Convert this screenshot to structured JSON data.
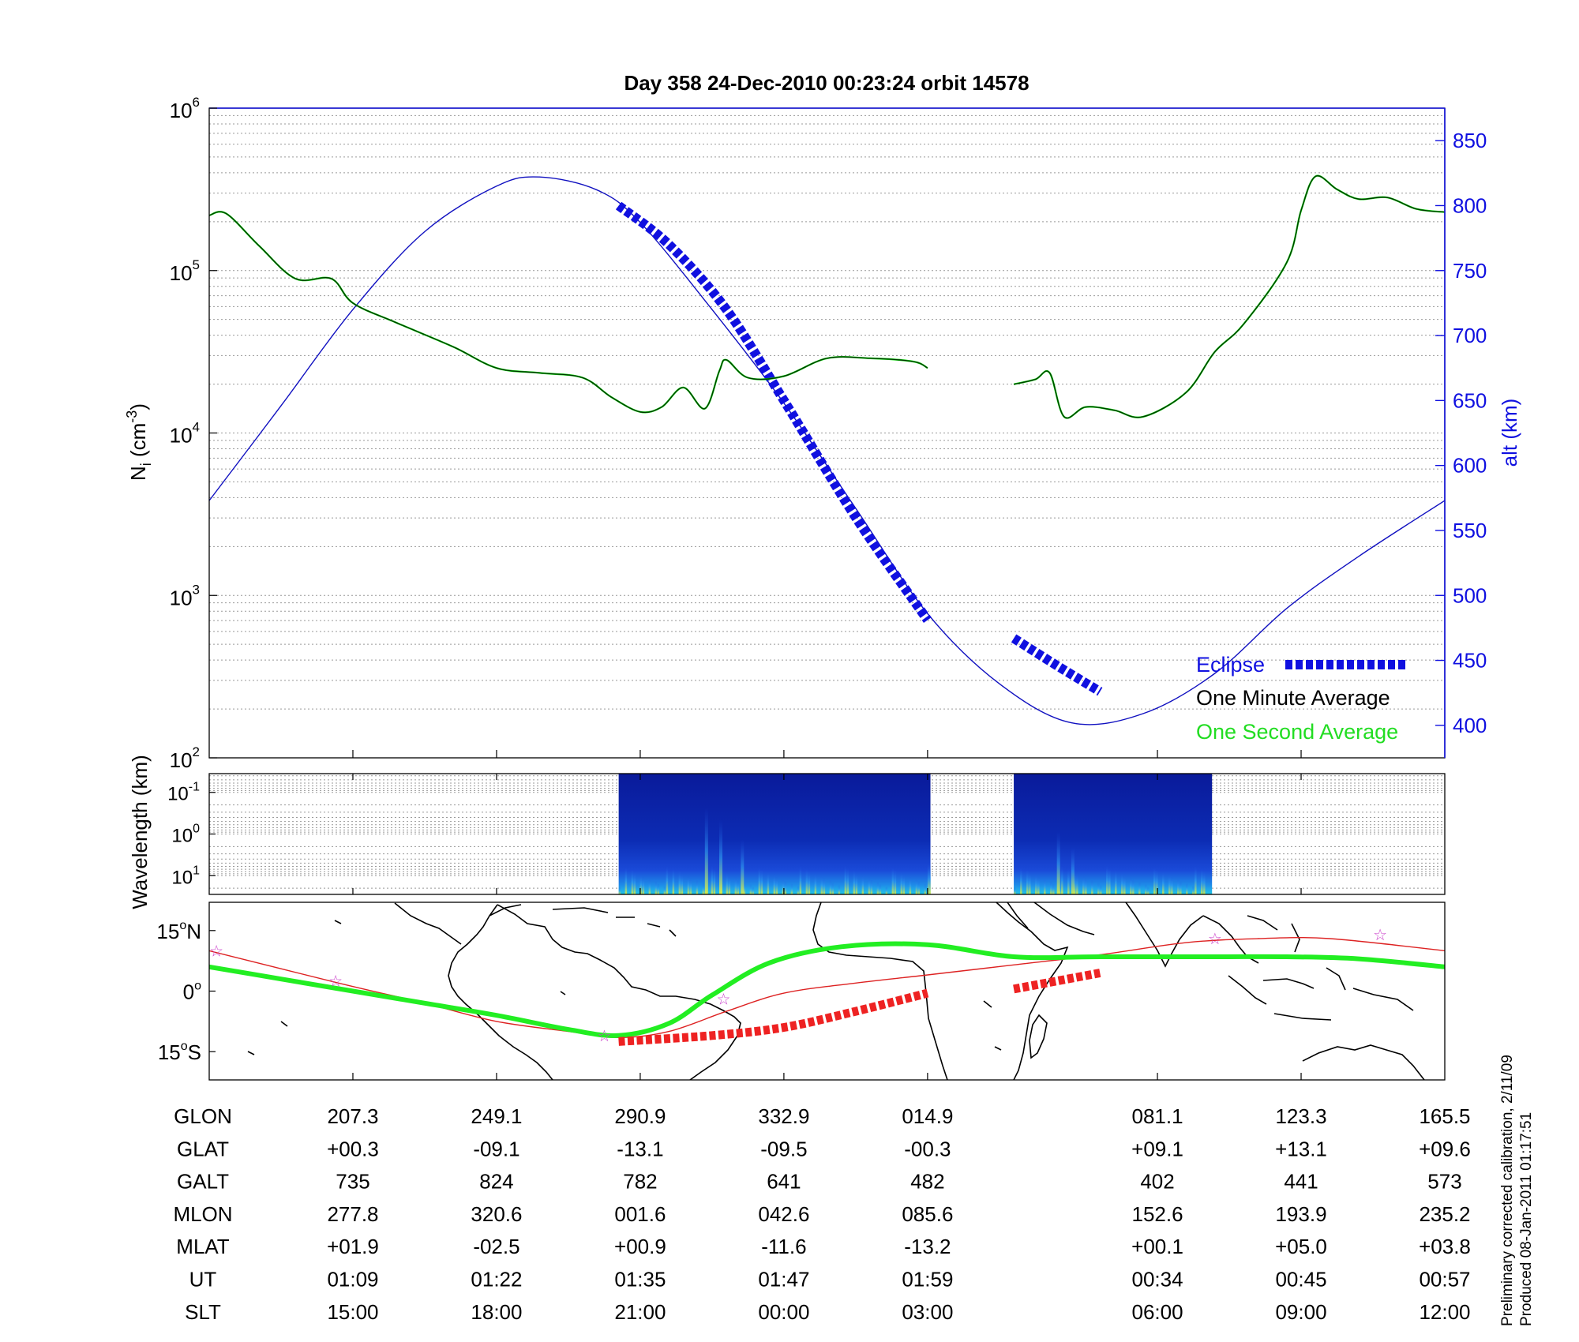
{
  "title": "Day 358  24-Dec-2010 00:23:24   orbit 14578",
  "colors": {
    "blue": "#1010e0",
    "eclipse": "#1010e0",
    "minute_avg": "#003300",
    "second_avg": "#00dd00",
    "track_green": "#22ee22",
    "track_red": "#ee2222",
    "star": "#cc44cc",
    "grid": "#999999"
  },
  "chart_data": [
    {
      "type": "line",
      "panel": "ion-density",
      "ylabel_left": "N",
      "ylabel_left_sub": "i",
      "ylabel_left_unit": " (cm",
      "ylabel_left_exp": "-3",
      "ylabel_left_close": ")",
      "ylim_log": [
        2,
        6
      ],
      "left_ticks": [
        {
          "base": "10",
          "exp": "2",
          "v": 2
        },
        {
          "base": "10",
          "exp": "3",
          "v": 3
        },
        {
          "base": "10",
          "exp": "4",
          "v": 4
        },
        {
          "base": "10",
          "exp": "5",
          "v": 5
        },
        {
          "base": "10",
          "exp": "6",
          "v": 6
        }
      ],
      "ylabel_right": "alt (km)",
      "ylim_right": [
        375,
        875
      ],
      "right_ticks": [
        "400",
        "450",
        "500",
        "550",
        "600",
        "650",
        "700",
        "750",
        "800",
        "850"
      ],
      "x_range": [
        0,
        8.6
      ],
      "grid": true,
      "legend": {
        "position": "bottom-right",
        "eclipse": "Eclipse",
        "minute": "One Minute Average",
        "second": "One Second Average"
      },
      "altitude": {
        "x": [
          0.0,
          0.5,
          1.0,
          1.5,
          2.0,
          2.3,
          2.7,
          3.0,
          3.5,
          4.0,
          4.5,
          5.0,
          5.5,
          6.0,
          6.5,
          7.0,
          7.5,
          8.0,
          8.6
        ],
        "alt": [
          573,
          646,
          720,
          780,
          815,
          822,
          812,
          787,
          720,
          648,
          567,
          486,
          432,
          402,
          409,
          440,
          490,
          530,
          573
        ]
      },
      "eclipse_segments": [
        {
          "x": [
            2.85,
            3.2,
            3.6,
            4.0,
            4.5,
            5.0
          ],
          "alt": [
            800,
            770,
            720,
            650,
            560,
            481
          ]
        },
        {
          "x": [
            5.6,
            5.9,
            6.2
          ],
          "alt": [
            467,
            446,
            426
          ]
        }
      ],
      "density_segments": [
        {
          "x": [
            0.0,
            0.12,
            0.35,
            0.6,
            0.85,
            1.0,
            1.3,
            1.7,
            2.0,
            2.3,
            2.6,
            2.8,
            3.0,
            3.15,
            3.3,
            3.45,
            3.55,
            3.6,
            3.75,
            4.0,
            4.3,
            4.6,
            4.9,
            5.0
          ],
          "logN": [
            5.34,
            5.35,
            5.15,
            4.95,
            4.95,
            4.8,
            4.68,
            4.53,
            4.4,
            4.37,
            4.34,
            4.22,
            4.13,
            4.16,
            4.28,
            4.15,
            4.38,
            4.45,
            4.34,
            4.35,
            4.46,
            4.46,
            4.44,
            4.4
          ]
        },
        {
          "x": [
            5.6,
            5.75,
            5.85,
            5.95,
            6.1,
            6.3,
            6.5,
            6.8,
            7.0,
            7.2,
            7.5,
            7.6,
            7.7,
            7.85,
            8.0,
            8.2,
            8.4,
            8.6
          ],
          "logN": [
            4.3,
            4.33,
            4.37,
            4.1,
            4.16,
            4.14,
            4.1,
            4.25,
            4.5,
            4.67,
            5.05,
            5.37,
            5.58,
            5.5,
            5.44,
            5.45,
            5.38,
            5.36
          ]
        }
      ]
    },
    {
      "type": "heatmap",
      "panel": "wavelength-spectrogram",
      "ylabel": "Wavelength (km)",
      "y_ticks": [
        {
          "base": "10",
          "exp": "-1",
          "v": -1
        },
        {
          "base": "10",
          "exp": "0",
          "v": 0
        },
        {
          "base": "10",
          "exp": "1",
          "v": 1
        }
      ],
      "ylim_log": [
        -1.45,
        1.45
      ],
      "blocks_x": [
        [
          2.85,
          5.02
        ],
        [
          5.6,
          6.98
        ]
      ]
    },
    {
      "type": "line",
      "panel": "ground-track",
      "ylim": [
        -22,
        22
      ],
      "y_ticks": [
        {
          "v": 15,
          "text": "15",
          "suffix": "N"
        },
        {
          "v": 0,
          "text": "0",
          "suffix": ""
        },
        {
          "v": -15,
          "text": "15",
          "suffix": "S"
        }
      ],
      "satellite_track": {
        "x": [
          0.0,
          0.5,
          1.0,
          1.5,
          2.0,
          2.5,
          2.85,
          3.2,
          3.5,
          3.9,
          4.4,
          5.0,
          5.6,
          6.2,
          7.0,
          7.5,
          8.0,
          8.6
        ],
        "lat": [
          6,
          3,
          0,
          -3,
          -6,
          -9.5,
          -11,
          -8,
          -1,
          7,
          11,
          11.5,
          8.5,
          8.5,
          8.5,
          8.5,
          8,
          6
        ]
      },
      "magnetic_equator": {
        "x": [
          0.0,
          0.9,
          1.5,
          2.0,
          2.5,
          2.85,
          3.2,
          3.6,
          4.0,
          4.5,
          5.0,
          5.6,
          6.2,
          6.8,
          7.3,
          7.8,
          8.6
        ],
        "lat": [
          10,
          2,
          -3,
          -7.5,
          -10,
          -11.5,
          -10,
          -5,
          -0.5,
          2,
          4,
          6.5,
          9,
          12,
          13,
          13,
          10
        ]
      },
      "eclipse_track": [
        {
          "x": [
            2.85,
            3.5,
            4.0,
            4.5,
            5.0
          ],
          "lat": [
            -12.5,
            -11,
            -9,
            -5,
            -0.5
          ]
        },
        {
          "x": [
            5.6,
            6.2
          ],
          "lat": [
            0.5,
            4.5
          ]
        }
      ],
      "stars": [
        {
          "x": 0.05,
          "lat": 10
        },
        {
          "x": 0.88,
          "lat": 2.5
        },
        {
          "x": 2.75,
          "lat": -11
        },
        {
          "x": 3.58,
          "lat": -2
        },
        {
          "x": 7.0,
          "lat": 13
        },
        {
          "x": 8.15,
          "lat": 14
        }
      ]
    }
  ],
  "table": {
    "row_labels": [
      "GLON",
      "GLAT",
      "GALT",
      "MLON",
      "MLAT",
      "UT",
      "SLT"
    ],
    "columns": [
      {
        "x": 1.0,
        "values": [
          "207.3",
          "+00.3",
          "735",
          "277.8",
          "+01.9",
          "01:09",
          "15:00"
        ]
      },
      {
        "x": 2.0,
        "values": [
          "249.1",
          "-09.1",
          "824",
          "320.6",
          "-02.5",
          "01:22",
          "18:00"
        ]
      },
      {
        "x": 3.0,
        "values": [
          "290.9",
          "-13.1",
          "782",
          "001.6",
          "+00.9",
          "01:35",
          "21:00"
        ]
      },
      {
        "x": 4.0,
        "values": [
          "332.9",
          "-09.5",
          "641",
          "042.6",
          "-11.6",
          "01:47",
          "00:00"
        ]
      },
      {
        "x": 5.0,
        "values": [
          "014.9",
          "-00.3",
          "482",
          "085.6",
          "-13.2",
          "01:59",
          "03:00"
        ]
      },
      {
        "x": 6.6,
        "values": [
          "081.1",
          "+09.1",
          "402",
          "152.6",
          "+00.1",
          "00:34",
          "06:00"
        ]
      },
      {
        "x": 7.6,
        "values": [
          "123.3",
          "+13.1",
          "441",
          "193.9",
          "+05.0",
          "00:45",
          "09:00"
        ]
      },
      {
        "x": 8.6,
        "values": [
          "165.5",
          "+09.6",
          "573",
          "235.2",
          "+03.8",
          "00:57",
          "12:00"
        ]
      }
    ]
  },
  "footer": {
    "line1": "Preliminary corrected calibration, 2/11/09",
    "line2": "Produced 08-Jan-2011 01:17:51"
  }
}
